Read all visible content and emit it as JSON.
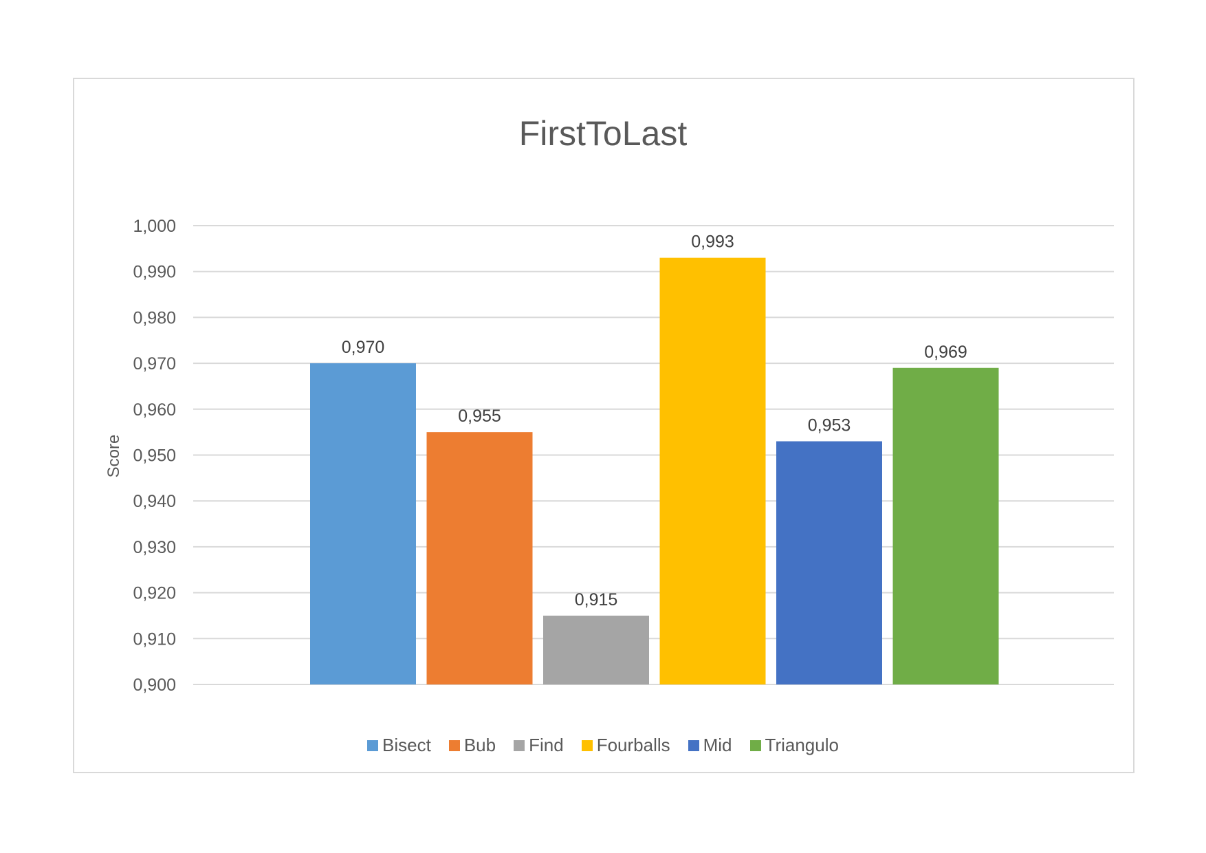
{
  "chart_data": {
    "type": "bar",
    "title": "FirstToLast",
    "ylabel": "Score",
    "xlabel": "",
    "categories": [
      "Bisect",
      "Bub",
      "Find",
      "Fourballs",
      "Mid",
      "Triangulo"
    ],
    "values": [
      0.97,
      0.955,
      0.915,
      0.993,
      0.953,
      0.969
    ],
    "data_labels": [
      "0,970",
      "0,955",
      "0,915",
      "0,993",
      "0,953",
      "0,969"
    ],
    "colors": [
      "#5b9bd5",
      "#ed7d31",
      "#a5a5a5",
      "#ffc000",
      "#4472c4",
      "#70ad47"
    ],
    "ylim": [
      0.9,
      1.0
    ],
    "ytick_values": [
      0.9,
      0.91,
      0.92,
      0.93,
      0.94,
      0.95,
      0.96,
      0.97,
      0.98,
      0.99,
      1.0
    ],
    "ytick_labels": [
      "0,900",
      "0,910",
      "0,920",
      "0,930",
      "0,940",
      "0,950",
      "0,960",
      "0,970",
      "0,980",
      "0,990",
      "1,000"
    ],
    "grid": true,
    "legend_position": "bottom",
    "gridline_color": "#d9d9d9"
  }
}
